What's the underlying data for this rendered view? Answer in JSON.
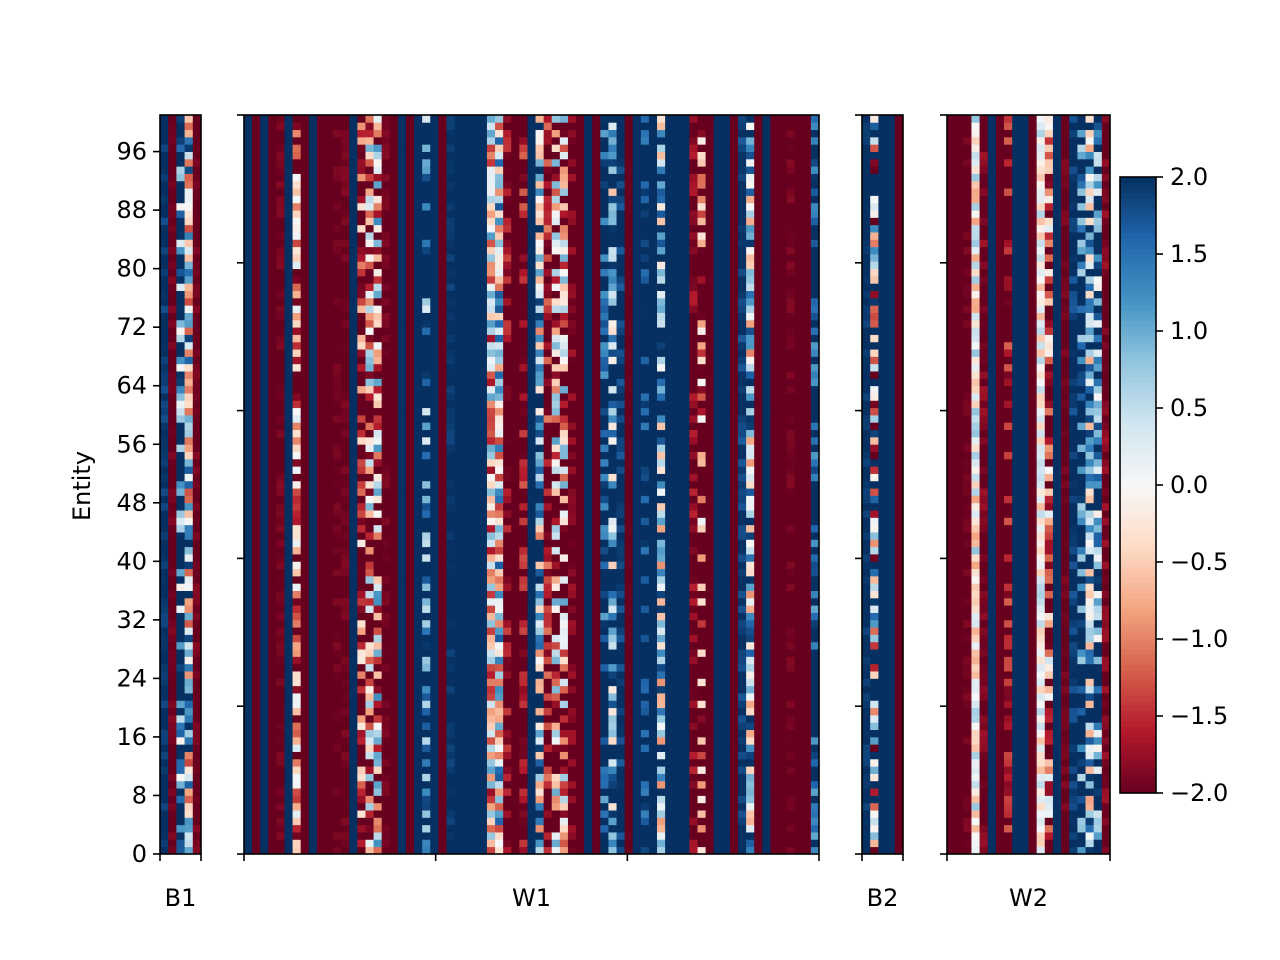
{
  "chart_data": {
    "type": "heatmap",
    "title": "",
    "ylabel": "Entity",
    "ylim": [
      0,
      101
    ],
    "y_ticks": [
      0,
      8,
      16,
      24,
      32,
      40,
      48,
      56,
      64,
      72,
      80,
      88,
      96
    ],
    "clim": [
      -2.0,
      2.0
    ],
    "colormap": "RdBu",
    "colorbar": {
      "ticks": [
        2.0,
        1.5,
        1.0,
        0.5,
        0.0,
        -0.5,
        -1.0,
        -1.5,
        -2.0
      ],
      "tick_labels": [
        "2.0",
        "1.5",
        "1.0",
        "0.5",
        "0.0",
        "−0.5",
        "−1.0",
        "−1.5",
        "−2.0"
      ]
    },
    "panels": [
      {
        "name": "B1",
        "columns": 5,
        "column_values": [
          2.0,
          -2.0,
          2.0,
          0.4,
          -2.0
        ],
        "column_noise": [
          0.15,
          0.1,
          1.4,
          1.1,
          0.1
        ]
      },
      {
        "name": "W1",
        "columns": 71,
        "column_values": [
          2.0,
          -2.0,
          2.0,
          -2.0,
          -2.0,
          2.0,
          -1.1,
          -2.0,
          2.0,
          -2.0,
          -2.0,
          -2.0,
          -2.0,
          2.0,
          -2.0,
          -1.0,
          -0.7,
          -2.0,
          -2.0,
          2.0,
          -2.0,
          2.0,
          2.0,
          2.0,
          -2.0,
          2.0,
          2.0,
          2.0,
          2.0,
          2.0,
          -0.3,
          0.2,
          -2.0,
          -2.0,
          -2.0,
          2.0,
          0.9,
          -2.0,
          -1.0,
          -1.0,
          -2.0,
          -2.0,
          2.0,
          -2.0,
          2.0,
          1.3,
          2.0,
          -2.0,
          2.0,
          2.0,
          2.0,
          1.0,
          2.0,
          2.0,
          2.0,
          -2.0,
          -2.0,
          -2.0,
          2.0,
          2.0,
          -2.0,
          2.0,
          0.6,
          -2.0,
          2.0,
          -2.0,
          -2.0,
          -2.0,
          -2.0,
          -2.0,
          2.0
        ],
        "column_noise": [
          0.05,
          0.05,
          0.05,
          0.05,
          0.1,
          0.05,
          0.9,
          0.05,
          0.05,
          0.05,
          0.05,
          0.1,
          0.1,
          0.05,
          1.2,
          1.3,
          1.3,
          0.1,
          0.05,
          0.05,
          0.05,
          0.05,
          1.1,
          0.05,
          0.05,
          0.1,
          0.05,
          0.05,
          0.05,
          0.05,
          0.9,
          1.0,
          0.4,
          0.05,
          0.5,
          0.05,
          1.2,
          0.6,
          1.3,
          1.3,
          0.2,
          0.05,
          0.05,
          0.05,
          0.6,
          1.2,
          0.2,
          0.05,
          0.05,
          0.4,
          0.05,
          1.2,
          0.05,
          0.05,
          0.05,
          0.3,
          1.3,
          0.05,
          0.05,
          0.05,
          0.05,
          0.2,
          1.0,
          0.05,
          0.05,
          0.05,
          0.05,
          0.1,
          0.05,
          0.05,
          0.6
        ]
      },
      {
        "name": "B2",
        "columns": 5,
        "column_values": [
          2.0,
          0.3,
          2.0,
          2.0,
          -2.0
        ],
        "column_noise": [
          0.1,
          1.6,
          0.05,
          0.05,
          0.05
        ]
      },
      {
        "name": "W2",
        "columns": 20,
        "column_values": [
          -2.0,
          -2.0,
          -2.0,
          0.0,
          -2.0,
          2.0,
          -2.0,
          -2.0,
          2.0,
          2.0,
          -2.0,
          0.0,
          -1.2,
          2.0,
          -2.0,
          2.0,
          2.0,
          0.8,
          1.6,
          -2.0
        ],
        "column_noise": [
          0.05,
          0.05,
          0.1,
          0.5,
          0.2,
          0.05,
          0.05,
          0.5,
          0.05,
          0.05,
          0.05,
          0.4,
          1.0,
          0.05,
          0.1,
          0.2,
          0.9,
          1.0,
          1.1,
          0.2
        ]
      }
    ]
  }
}
